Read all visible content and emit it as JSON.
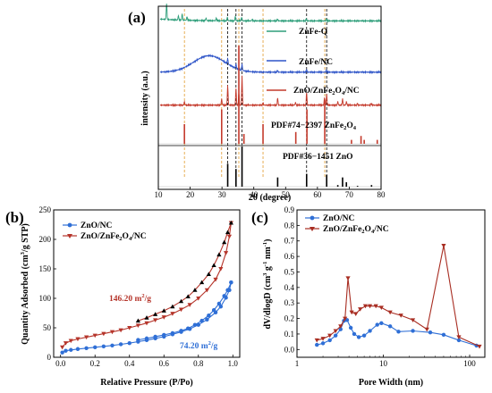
{
  "chart_data": [
    {
      "panel": "(a)",
      "type": "line",
      "title": "",
      "xlabel": "2θ (degree)",
      "ylabel": "intensity (a.u.)",
      "xlim": [
        10,
        80
      ],
      "xticks": [
        10,
        20,
        30,
        40,
        50,
        60,
        70,
        80
      ],
      "grid": false,
      "legend_position": "right of each trace",
      "series": [
        {
          "name": "ZnFe-Q",
          "color": "#2e9e7a",
          "offset": 0.92,
          "peaks": [
            [
              12.6,
              0.09
            ],
            [
              16.3,
              0.025
            ],
            [
              17.5,
              0.035
            ],
            [
              19.0,
              0.02
            ],
            [
              25.0,
              0.015
            ],
            [
              28.2,
              0.015
            ],
            [
              31.7,
              0.02
            ],
            [
              34.2,
              0.025
            ],
            [
              36.2,
              0.02
            ],
            [
              39.5,
              0.01
            ],
            [
              47.5,
              0.01
            ],
            [
              56.5,
              0.012
            ],
            [
              62.8,
              0.012
            ]
          ]
        },
        {
          "name": "ZnFe/NC",
          "color": "#2f55c8",
          "offset": 0.64,
          "hump": [
            26.0,
            0.09,
            7.0
          ],
          "peaks": [
            [
              31.8,
              0.03
            ],
            [
              34.4,
              0.025
            ],
            [
              36.3,
              0.035
            ],
            [
              47.5,
              0.01
            ],
            [
              56.6,
              0.015
            ],
            [
              62.8,
              0.012
            ]
          ]
        },
        {
          "name": "ZnO/ZnFe",
          "color": "#c43a2c",
          "offset": 0.46,
          "peaks": [
            [
              18.2,
              0.02
            ],
            [
              29.9,
              0.035
            ],
            [
              31.8,
              0.11
            ],
            [
              34.4,
              0.09
            ],
            [
              35.3,
              0.07
            ],
            [
              36.3,
              0.16
            ],
            [
              42.9,
              0.015
            ],
            [
              47.5,
              0.04
            ],
            [
              53.1,
              0.015
            ],
            [
              56.6,
              0.07
            ],
            [
              62.2,
              0.04
            ],
            [
              62.9,
              0.06
            ],
            [
              66.4,
              0.02
            ],
            [
              67.9,
              0.035
            ],
            [
              69.1,
              0.02
            ],
            [
              72.6,
              0.01
            ],
            [
              76.9,
              0.01
            ]
          ]
        }
      ],
      "reference_patterns": [
        {
          "name": "PDF#74−2397 ZnFe",
          "color": "#c43a2c",
          "peaks": [
            [
              18.2,
              0.2
            ],
            [
              29.9,
              0.35
            ],
            [
              35.3,
              1.0
            ],
            [
              36.9,
              0.1
            ],
            [
              42.9,
              0.2
            ],
            [
              53.2,
              0.12
            ],
            [
              56.7,
              0.35
            ],
            [
              62.3,
              0.45
            ],
            [
              70.7,
              0.04
            ],
            [
              73.7,
              0.08
            ],
            [
              74.7,
              0.04
            ],
            [
              78.8,
              0.04
            ]
          ]
        },
        {
          "name": "PDF#36−1451 ZnO",
          "color": "#000000",
          "peaks": [
            [
              31.8,
              0.57
            ],
            [
              34.4,
              0.44
            ],
            [
              36.3,
              1.0
            ],
            [
              47.5,
              0.23
            ],
            [
              56.6,
              0.32
            ],
            [
              62.9,
              0.29
            ],
            [
              66.4,
              0.04
            ],
            [
              67.9,
              0.23
            ],
            [
              69.1,
              0.11
            ],
            [
              72.6,
              0.02
            ],
            [
              77.0,
              0.04
            ]
          ]
        }
      ],
      "guide_lines": [
        {
          "x": 31.8,
          "color": "#000000"
        },
        {
          "x": 34.4,
          "color": "#000000"
        },
        {
          "x": 36.3,
          "color": "#000000"
        },
        {
          "x": 56.6,
          "color": "#000000"
        },
        {
          "x": 62.9,
          "color": "#000000"
        },
        {
          "x": 18.2,
          "color": "#e09a2c"
        },
        {
          "x": 29.9,
          "color": "#e09a2c"
        },
        {
          "x": 35.3,
          "color": "#e09a2c"
        },
        {
          "x": 42.9,
          "color": "#e09a2c"
        },
        {
          "x": 62.3,
          "color": "#e09a2c"
        }
      ]
    },
    {
      "panel": "(b)",
      "type": "line",
      "title": "",
      "xlabel": "Relative Pressure (P/Po)",
      "ylabel": "Quantity Adsorbed (cm³/g STP)",
      "xlim": [
        -0.04,
        1.04
      ],
      "ylim": [
        0,
        250
      ],
      "xticks": [
        0.0,
        0.2,
        0.4,
        0.6,
        0.8,
        1.0
      ],
      "yticks": [
        0,
        50,
        100,
        150,
        200,
        250
      ],
      "grid": false,
      "legend_position": "top-left",
      "annotations": [
        {
          "text": "146.20 m²/g",
          "x": 0.52,
          "y": 103,
          "color": "#b5342a"
        },
        {
          "text": "74.20 m²/g",
          "x": 0.66,
          "y": 25,
          "color": "#2f6fd6"
        }
      ],
      "series": [
        {
          "name": "ZnO/NC",
          "color": "#2f6fd6",
          "marker": "circle",
          "adsorption": [
            [
              0.01,
              8
            ],
            [
              0.03,
              11
            ],
            [
              0.06,
              12.5
            ],
            [
              0.1,
              14
            ],
            [
              0.15,
              15.5
            ],
            [
              0.2,
              17
            ],
            [
              0.25,
              18.5
            ],
            [
              0.3,
              20
            ],
            [
              0.35,
              22
            ],
            [
              0.4,
              24
            ],
            [
              0.45,
              26.5
            ],
            [
              0.5,
              29
            ],
            [
              0.55,
              32
            ],
            [
              0.6,
              35
            ],
            [
              0.65,
              39
            ],
            [
              0.7,
              43
            ],
            [
              0.75,
              48
            ],
            [
              0.8,
              55
            ],
            [
              0.85,
              64
            ],
            [
              0.9,
              76
            ],
            [
              0.93,
              86
            ],
            [
              0.96,
              101
            ],
            [
              0.98,
              114
            ],
            [
              0.99,
              127
            ]
          ],
          "desorption": [
            [
              0.99,
              127
            ],
            [
              0.97,
              114
            ],
            [
              0.95,
              104
            ],
            [
              0.92,
              91
            ],
            [
              0.89,
              80
            ],
            [
              0.86,
              71
            ],
            [
              0.82,
              62
            ],
            [
              0.78,
              55
            ],
            [
              0.74,
              49
            ],
            [
              0.7,
              45
            ],
            [
              0.65,
              41
            ],
            [
              0.6,
              38
            ],
            [
              0.55,
              35
            ],
            [
              0.5,
              32
            ],
            [
              0.45,
              29.5
            ]
          ]
        },
        {
          "name": "ZnO/ZnFe",
          "color": "#b5342a",
          "marker": "triangle-down",
          "adsorption": [
            [
              0.01,
              17
            ],
            [
              0.03,
              24
            ],
            [
              0.06,
              28
            ],
            [
              0.1,
              31
            ],
            [
              0.15,
              34
            ],
            [
              0.2,
              37
            ],
            [
              0.25,
              40
            ],
            [
              0.3,
              43
            ],
            [
              0.35,
              46
            ],
            [
              0.4,
              50
            ],
            [
              0.45,
              54
            ],
            [
              0.5,
              58
            ],
            [
              0.55,
              63
            ],
            [
              0.6,
              68
            ],
            [
              0.65,
              74
            ],
            [
              0.7,
              81
            ],
            [
              0.75,
              89
            ],
            [
              0.8,
              100
            ],
            [
              0.85,
              114
            ],
            [
              0.9,
              132
            ],
            [
              0.93,
              150
            ],
            [
              0.96,
              177
            ],
            [
              0.98,
              205
            ],
            [
              0.99,
              228
            ]
          ],
          "desorption": [
            [
              0.99,
              228
            ],
            [
              0.97,
              212
            ],
            [
              0.95,
              195
            ],
            [
              0.92,
              174
            ],
            [
              0.89,
              156
            ],
            [
              0.86,
              141
            ],
            [
              0.82,
              127
            ],
            [
              0.78,
              114
            ],
            [
              0.74,
              103
            ],
            [
              0.7,
              95
            ],
            [
              0.65,
              86
            ],
            [
              0.6,
              79
            ],
            [
              0.55,
              73
            ],
            [
              0.5,
              67
            ],
            [
              0.45,
              62
            ]
          ]
        }
      ]
    },
    {
      "panel": "(c)",
      "type": "line",
      "title": "",
      "xlabel": "Pore Width (nm)",
      "ylabel": "dV/dlogD (cm³ g⁻¹ nm⁻¹)",
      "xscale": "log",
      "xlim": [
        1,
        150
      ],
      "ylim": [
        -0.05,
        0.9
      ],
      "xticks": [
        1,
        10,
        100
      ],
      "yticks": [
        0.0,
        0.1,
        0.2,
        0.3,
        0.4,
        0.5,
        0.6,
        0.7,
        0.8,
        0.9
      ],
      "grid": false,
      "legend_position": "top-left",
      "series": [
        {
          "name": "ZnO/NC",
          "color": "#2f6fd6",
          "marker": "circle",
          "points": [
            [
              1.7,
              0.03
            ],
            [
              2.0,
              0.04
            ],
            [
              2.4,
              0.06
            ],
            [
              2.8,
              0.09
            ],
            [
              3.2,
              0.13
            ],
            [
              3.5,
              0.185
            ],
            [
              3.8,
              0.19
            ],
            [
              4.2,
              0.14
            ],
            [
              4.6,
              0.1
            ],
            [
              5.2,
              0.08
            ],
            [
              6.0,
              0.09
            ],
            [
              7.0,
              0.12
            ],
            [
              8.5,
              0.16
            ],
            [
              9.5,
              0.17
            ],
            [
              12,
              0.15
            ],
            [
              15,
              0.115
            ],
            [
              22,
              0.12
            ],
            [
              35,
              0.11
            ],
            [
              50,
              0.095
            ],
            [
              75,
              0.06
            ],
            [
              120,
              0.025
            ]
          ]
        },
        {
          "name": "ZnO/ZnFe",
          "color": "#a82d22",
          "marker": "triangle-down",
          "points": [
            [
              1.7,
              0.06
            ],
            [
              2.0,
              0.07
            ],
            [
              2.4,
              0.09
            ],
            [
              2.8,
              0.12
            ],
            [
              3.2,
              0.15
            ],
            [
              3.6,
              0.2
            ],
            [
              3.9,
              0.46
            ],
            [
              4.3,
              0.24
            ],
            [
              4.8,
              0.23
            ],
            [
              5.4,
              0.26
            ],
            [
              6.2,
              0.28
            ],
            [
              7.0,
              0.28
            ],
            [
              8.2,
              0.28
            ],
            [
              9.5,
              0.27
            ],
            [
              12,
              0.24
            ],
            [
              16,
              0.22
            ],
            [
              22,
              0.19
            ],
            [
              32,
              0.13
            ],
            [
              50,
              0.67
            ],
            [
              75,
              0.08
            ],
            [
              130,
              0.02
            ]
          ]
        }
      ]
    }
  ],
  "legend_a": {
    "zn_fe_q": "ZnFe-Q",
    "zn_fe_nc": "ZnFe/NC",
    "zno_znfe_base": "ZnO/ZnFe",
    "zno_znfe_sub": "2",
    "zno_znfe_o4": "O",
    "zno_znfe_sub4": "4",
    "zno_znfe_tail": "/NC"
  },
  "pdf_labels": {
    "znfe_base": "PDF#74−2397 ZnFe",
    "znfe_sub2": "2",
    "znfe_o": "O",
    "znfe_sub4": "4",
    "zno": "PDF#36−1451 ZnO"
  },
  "legend_b": {
    "zno_nc": "ZnO/NC",
    "zno_znfe_base": "ZnO/ZnFe",
    "sub2": "2",
    "o": "O",
    "sub4": "4",
    "tail": "/NC"
  },
  "legend_c": {
    "zno_nc": "ZnO/NC",
    "zno_znfe_base": "ZnO/ZnFe",
    "sub2": "2",
    "o": "O",
    "sub4": "4",
    "tail": "/NC"
  },
  "panel_labels": {
    "a": "(a)",
    "b": "(b)",
    "c": "(c)"
  },
  "axis_titles": {
    "a_x": "2θ (degree)",
    "a_y": "intensity (a.u.)",
    "b_x": "Relative Pressure (P/Po)",
    "b_y_base": "Quantity Adsorbed (cm",
    "b_y_sup": "3",
    "b_y_tail": "/g STP)",
    "c_x": "Pore Width (nm)",
    "c_y_base": "dV/dlogD (cm",
    "c_y_sup1": "3",
    "c_y_mid": " g",
    "c_y_sup2": "-1",
    "c_y_mid2": " nm",
    "c_y_sup3": "-1",
    "c_y_tail": ")"
  },
  "annotations_b": {
    "s1_base": "146.20 m",
    "s1_sup": "2",
    "s1_tail": "/g",
    "s2_base": "74.20 m",
    "s2_sup": "2",
    "s2_tail": "/g"
  }
}
